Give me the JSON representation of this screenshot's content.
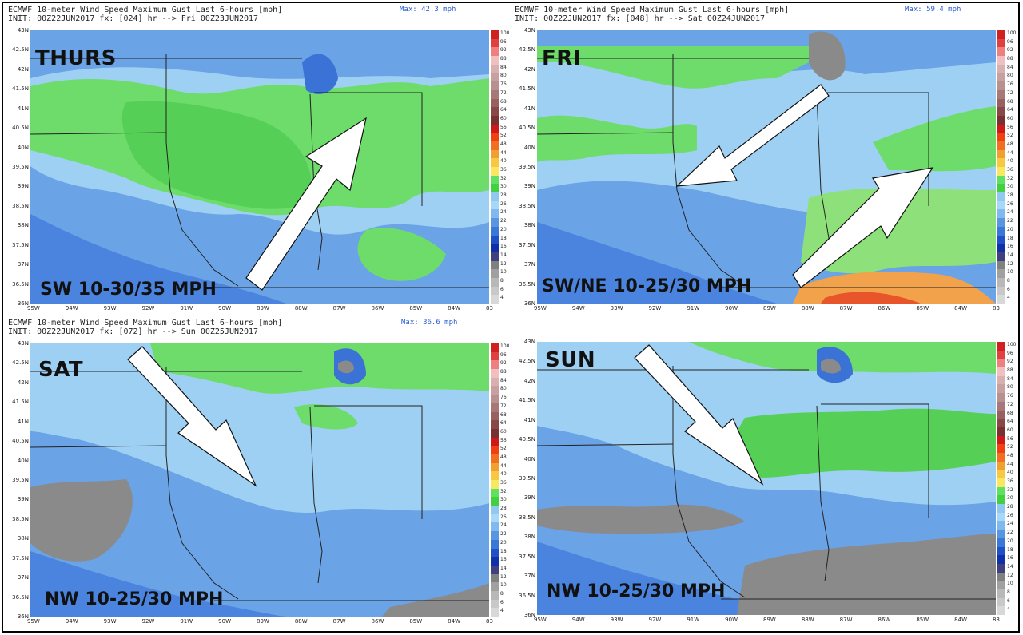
{
  "title_prefix": "ECMWF 10-meter Wind Speed Maximum Gust Last 6-hours [mph]",
  "colorbar_values": [
    "100",
    "96",
    "92",
    "88",
    "84",
    "80",
    "76",
    "72",
    "68",
    "64",
    "60",
    "56",
    "52",
    "48",
    "44",
    "40",
    "36",
    "32",
    "30",
    "28",
    "26",
    "24",
    "22",
    "20",
    "18",
    "16",
    "14",
    "12",
    "10",
    "8",
    "6",
    "4"
  ],
  "colorbar_colors": [
    "#d02020",
    "#e04040",
    "#f08080",
    "#f0c0c0",
    "#d8b0b0",
    "#c8a0a0",
    "#b89090",
    "#a87878",
    "#986060",
    "#884848",
    "#783030",
    "#d01818",
    "#f04010",
    "#f07020",
    "#f0a030",
    "#f8c840",
    "#f8e860",
    "#60e060",
    "#40d040",
    "#90c8f0",
    "#a8d8f8",
    "#80b8f0",
    "#5a96e0",
    "#3a78d8",
    "#2050c8",
    "#1030a8",
    "#404080",
    "#808080",
    "#a0a0a0",
    "#b8b8b8",
    "#c8c8c8",
    "#d8d8d8"
  ],
  "lat_labels": [
    "43N",
    "42.5N",
    "42N",
    "41.5N",
    "41N",
    "40.5N",
    "40N",
    "39.5N",
    "39N",
    "38.5N",
    "38N",
    "37.5N",
    "37N",
    "36.5N",
    "36N"
  ],
  "lon_labels": [
    "95W",
    "94W",
    "93W",
    "92W",
    "91W",
    "90W",
    "89W",
    "88W",
    "87W",
    "86W",
    "85W",
    "84W",
    "83"
  ],
  "panels": [
    {
      "id": "thurs",
      "init_line": "INIT: 00Z22JUN2017 fx: [024] hr --> Fri 00Z23JUN2017",
      "max_label": "Max: 42.3 mph",
      "day": "THURS",
      "description": "SW 10-30/35 MPH",
      "arrow_direction": "SW to NE"
    },
    {
      "id": "fri",
      "init_line": "INIT: 00Z22JUN2017 fx: [048] hr --> Sat 00Z24JUN2017",
      "max_label": "Max: 59.4 mph",
      "day": "FRI",
      "description": "SW/NE 10-25/30 MPH",
      "arrow_direction": "NE to SW and SW to NE"
    },
    {
      "id": "sat",
      "init_line": "INIT: 00Z22JUN2017 fx: [072] hr --> Sun 00Z25JUN2017",
      "max_label": "Max: 36.6 mph",
      "day": "SAT",
      "description": "NW 10-25/30 MPH",
      "arrow_direction": "NW to SE"
    },
    {
      "id": "sun",
      "init_line": "",
      "max_label": "",
      "day": "SUN",
      "description": "NW 10-25/30 MPH",
      "arrow_direction": "NW to SE"
    }
  ]
}
